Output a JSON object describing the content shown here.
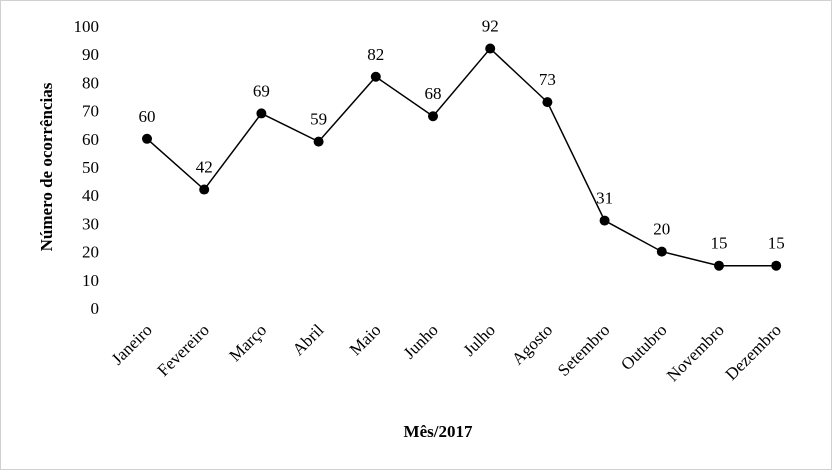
{
  "chart_data": {
    "type": "line",
    "categories": [
      "Janeiro",
      "Fevereiro",
      "Março",
      "Abril",
      "Maio",
      "Junho",
      "Julho",
      "Agosto",
      "Setembro",
      "Outubro",
      "Novembro",
      "Dezembro"
    ],
    "values": [
      60,
      42,
      69,
      59,
      82,
      68,
      92,
      73,
      31,
      20,
      15,
      15
    ],
    "xlabel": "Mês/2017",
    "ylabel": "Número de ocorrências",
    "ylim": [
      0,
      100
    ],
    "yticks": [
      0,
      10,
      20,
      30,
      40,
      50,
      60,
      70,
      80,
      90,
      100
    ],
    "grid": false,
    "legend": "none",
    "line_color": "#000000",
    "marker_color": "#000000"
  }
}
